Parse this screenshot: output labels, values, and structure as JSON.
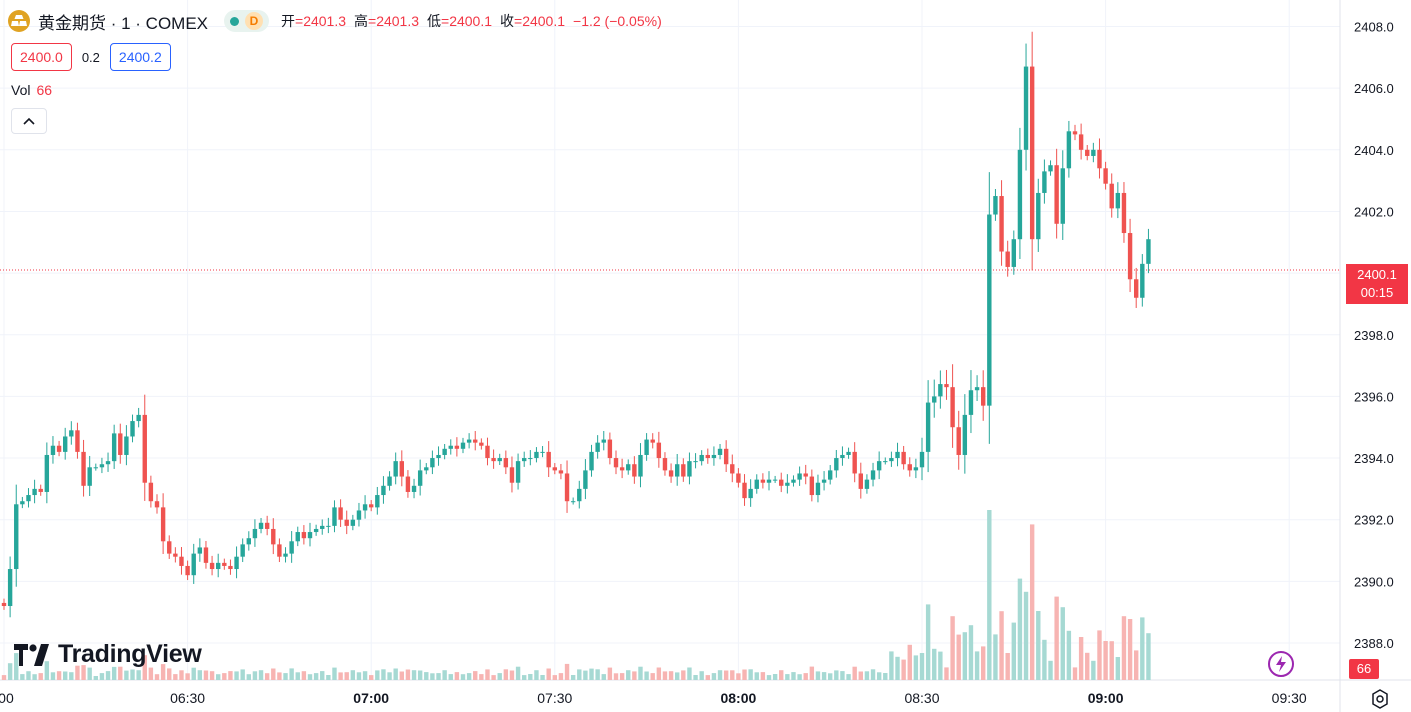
{
  "header": {
    "symbol": "黄金期货 · 1 · COMEX",
    "badge": "D",
    "open_label": "开",
    "open": "=2401.3",
    "high_label": "高",
    "high": "=2401.3",
    "low_label": "低",
    "low": "=2400.1",
    "close_label": "收",
    "close": "=2400.1",
    "change": "−1.2 (−0.05%)"
  },
  "quote": {
    "bid": "2400.0",
    "spread": "0.2",
    "ask": "2400.2"
  },
  "volume": {
    "label": "Vol",
    "value": "66"
  },
  "price_tag": {
    "price": "2400.1",
    "countdown": "00:15"
  },
  "volume_tag": "66",
  "logo": {
    "text": "TradingView"
  },
  "colors": {
    "up": "#26a69a",
    "down": "#ef5350",
    "up_vol": "#a6d9d3",
    "down_vol": "#f7b4b2",
    "last_price": "#f23645",
    "ask": "#2962ff"
  },
  "icons": {
    "collapse": "chevron-up-icon",
    "alert": "lightning-icon",
    "settings": "gear-icon"
  },
  "chart_data": {
    "type": "candlestick",
    "timeframe": "1 minute",
    "ylim": [
      2386.8,
      2408.6
    ],
    "y_ticks": [
      2388.0,
      2390.0,
      2392.0,
      2394.0,
      2396.0,
      2398.0,
      2400.0,
      2402.0,
      2404.0,
      2406.0,
      2408.0
    ],
    "x_ticks": [
      {
        "label": ":00",
        "minute": 0,
        "bold": false
      },
      {
        "label": "06:30",
        "minute": 30,
        "bold": false
      },
      {
        "label": "07:00",
        "minute": 60,
        "bold": true
      },
      {
        "label": "07:30",
        "minute": 90,
        "bold": false
      },
      {
        "label": "08:00",
        "minute": 120,
        "bold": true
      },
      {
        "label": "08:30",
        "minute": 150,
        "bold": false
      },
      {
        "label": "09:00",
        "minute": 180,
        "bold": true
      },
      {
        "label": "09:30",
        "minute": 210,
        "bold": false
      }
    ],
    "last_price": 2400.1,
    "start_price": 2389.3,
    "closes": [
      2389.2,
      2390.4,
      2392.5,
      2392.6,
      2392.8,
      2393.0,
      2392.9,
      2394.1,
      2394.4,
      2394.2,
      2394.7,
      2394.9,
      2394.2,
      2393.1,
      2393.7,
      2393.7,
      2393.8,
      2393.9,
      2394.8,
      2394.1,
      2394.7,
      2395.2,
      2395.4,
      2393.2,
      2392.6,
      2392.4,
      2391.3,
      2390.9,
      2390.8,
      2390.5,
      2390.2,
      2390.9,
      2391.1,
      2390.6,
      2390.4,
      2390.6,
      2390.5,
      2390.4,
      2390.8,
      2391.2,
      2391.4,
      2391.7,
      2391.9,
      2391.7,
      2391.2,
      2390.8,
      2390.9,
      2391.3,
      2391.6,
      2391.4,
      2391.6,
      2391.7,
      2391.8,
      2391.8,
      2392.4,
      2392.0,
      2391.8,
      2392.0,
      2392.3,
      2392.5,
      2392.4,
      2392.8,
      2393.1,
      2393.4,
      2393.9,
      2393.4,
      2392.9,
      2393.1,
      2393.6,
      2393.7,
      2394.0,
      2394.1,
      2394.3,
      2394.4,
      2394.3,
      2394.5,
      2394.6,
      2394.5,
      2394.4,
      2394.0,
      2393.9,
      2394.0,
      2393.7,
      2393.2,
      2393.9,
      2394.0,
      2394.0,
      2394.2,
      2394.2,
      2393.7,
      2393.6,
      2393.5,
      2392.6,
      2392.6,
      2393.0,
      2393.6,
      2394.2,
      2394.5,
      2394.6,
      2394.0,
      2393.7,
      2393.6,
      2393.8,
      2393.4,
      2394.1,
      2394.6,
      2394.5,
      2394.0,
      2393.6,
      2393.4,
      2393.8,
      2393.4,
      2393.9,
      2393.9,
      2394.1,
      2394.0,
      2394.1,
      2394.3,
      2393.8,
      2393.5,
      2393.2,
      2392.7,
      2393.0,
      2393.3,
      2393.2,
      2393.3,
      2393.3,
      2393.1,
      2393.2,
      2393.3,
      2393.5,
      2393.4,
      2392.8,
      2393.2,
      2393.3,
      2393.6,
      2394.0,
      2394.1,
      2394.2,
      2393.5,
      2393.0,
      2393.3,
      2393.6,
      2393.9,
      2393.9,
      2394.0,
      2394.2,
      2393.8,
      2393.6,
      2393.7,
      2394.2,
      2395.8,
      2396.0,
      2396.4,
      2396.3,
      2395.0,
      2394.1,
      2395.4,
      2396.2,
      2396.3,
      2395.7,
      2401.9,
      2402.5,
      2400.7,
      2400.2,
      2401.1,
      2404.0,
      2406.7,
      2401.1,
      2402.6,
      2403.3,
      2403.5,
      2401.6,
      2403.4,
      2404.6,
      2404.5,
      2404.0,
      2403.8,
      2404.0,
      2403.4,
      2402.9,
      2402.1,
      2402.6,
      2401.3,
      2399.8,
      2399.2,
      2400.3,
      2401.1
    ]
  }
}
